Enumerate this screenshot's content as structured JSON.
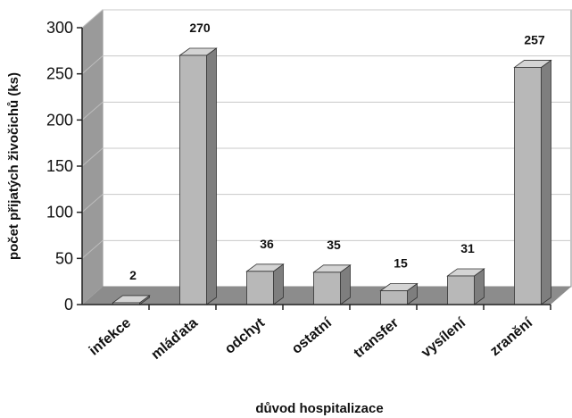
{
  "chart_data": {
    "type": "bar",
    "categories": [
      "infekce",
      "mláďata",
      "odchyt",
      "ostatní",
      "transfer",
      "vysílení",
      "zranění"
    ],
    "values": [
      2,
      270,
      36,
      35,
      15,
      31,
      257
    ],
    "xlabel": "důvod hospitalizace",
    "ylabel": "počet přijatých živočichů (ks)",
    "ylim": [
      0,
      300
    ],
    "yticks": [
      0,
      50,
      100,
      150,
      200,
      250,
      300
    ],
    "grid": true,
    "style": "3d",
    "colors": {
      "bar_front": "#b8b8b8",
      "bar_side": "#7e7e7e",
      "bar_top": "#d4d4d4",
      "wall_back": "#ffffff",
      "wall_left": "#9a9a9a",
      "floor": "#8c8c8c",
      "grid": "#c8c8c8"
    }
  }
}
